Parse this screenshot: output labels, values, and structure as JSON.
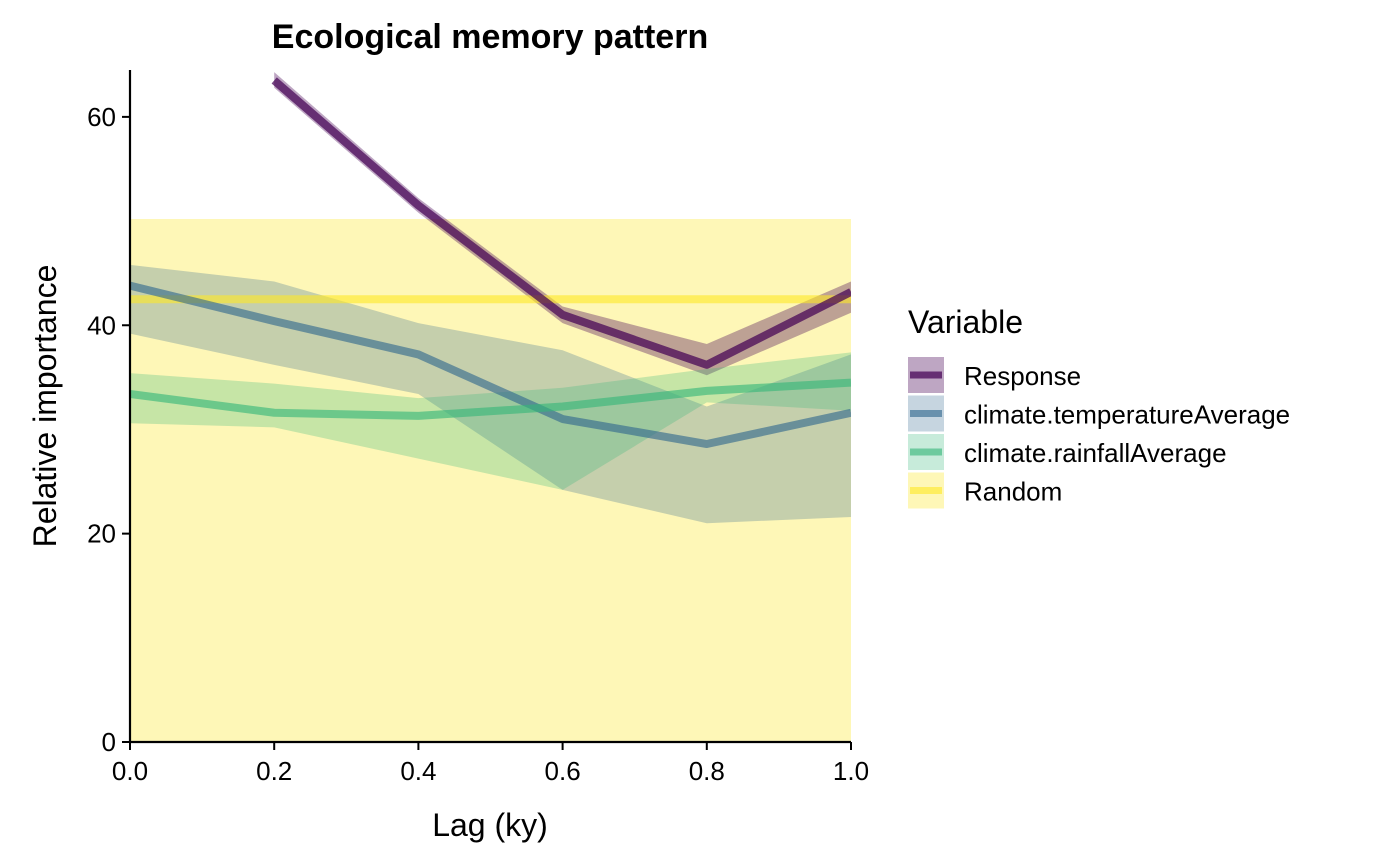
{
  "chart_data": {
    "type": "line",
    "title": "Ecological memory pattern",
    "xlabel": "Lag (ky)",
    "ylabel": "Relative importance",
    "xlim": [
      0,
      1
    ],
    "ylim": [
      0,
      64.5
    ],
    "x_ticks": [
      0.0,
      0.2,
      0.4,
      0.6,
      0.8,
      1.0
    ],
    "x_tick_labels": [
      "0.0",
      "0.2",
      "0.4",
      "0.6",
      "0.8",
      "1.0"
    ],
    "y_ticks": [
      0,
      20,
      40,
      60
    ],
    "y_tick_labels": [
      "0",
      "20",
      "40",
      "60"
    ],
    "grid": false,
    "legend": {
      "title": "Variable",
      "placement": "right"
    },
    "series": [
      {
        "name": "Response",
        "color": "#440154",
        "x": [
          0.2,
          0.4,
          0.6,
          0.8,
          1.0
        ],
        "median": [
          63.5,
          51.5,
          41.0,
          36.2,
          43.2
        ],
        "lower": [
          62.8,
          50.8,
          40.2,
          35.2,
          41.2
        ],
        "upper": [
          64.3,
          52.2,
          41.8,
          38.2,
          44.2
        ]
      },
      {
        "name": "climate.temperatureAverage",
        "color": "#31688e",
        "x": [
          0.0,
          0.2,
          0.4,
          0.6,
          0.8,
          1.0
        ],
        "median": [
          43.8,
          40.4,
          37.2,
          31.0,
          28.6,
          31.6
        ],
        "lower": [
          39.2,
          36.2,
          33.4,
          24.2,
          21.0,
          21.6
        ],
        "upper": [
          45.8,
          44.2,
          40.2,
          37.6,
          32.2,
          37.2
        ]
      },
      {
        "name": "climate.rainfallAverage",
        "color": "#35b779",
        "x": [
          0.0,
          0.2,
          0.4,
          0.6,
          0.8,
          1.0
        ],
        "median": [
          33.4,
          31.6,
          31.3,
          32.2,
          33.7,
          34.5
        ],
        "lower": [
          30.6,
          30.2,
          27.2,
          24.2,
          32.6,
          31.8
        ],
        "upper": [
          35.4,
          34.4,
          33.0,
          34.0,
          35.8,
          37.4
        ]
      },
      {
        "name": "Random",
        "color": "#fde725",
        "x": [
          0.0,
          1.0
        ],
        "median": [
          42.5,
          42.5
        ],
        "lower": [
          0,
          0
        ],
        "upper": [
          50.2,
          50.2
        ]
      }
    ]
  }
}
